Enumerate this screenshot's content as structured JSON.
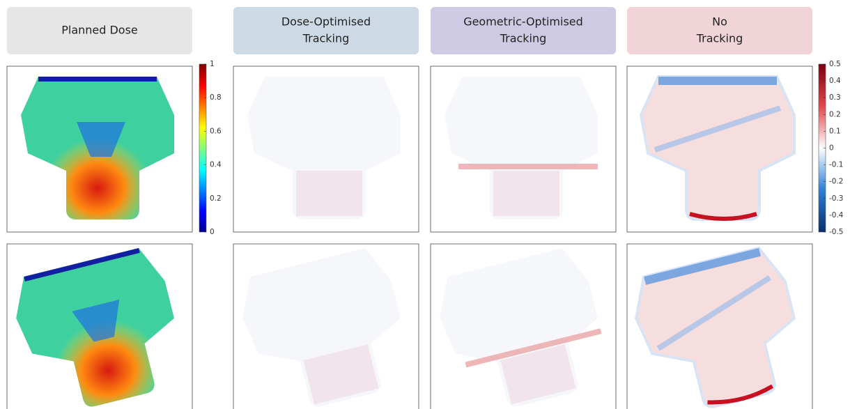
{
  "headers": [
    [
      "Planned Dose"
    ],
    [
      "Dose-Optimised",
      "Tracking"
    ],
    [
      "Geometric-Optimised",
      "Tracking"
    ],
    [
      "No",
      "Tracking"
    ]
  ],
  "colorbars": [
    {
      "lim": [
        0,
        1
      ],
      "ticks": [
        0,
        0.2,
        0.4,
        0.6,
        0.8,
        1
      ]
    },
    {
      "lim": [
        -0.5,
        0.5
      ],
      "ticks": [
        -0.5,
        -0.4,
        -0.3,
        -0.2,
        -0.1,
        0,
        0.1,
        0.2,
        0.3,
        0.4,
        0.5
      ]
    }
  ]
}
